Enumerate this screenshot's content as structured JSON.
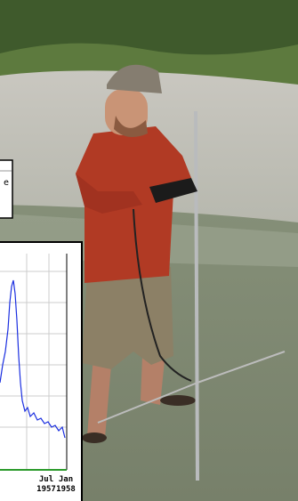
{
  "top_inset": {
    "fragment": "e"
  },
  "inset_chart": {
    "x_labels": [
      {
        "month": "Jul",
        "year": "1957"
      },
      {
        "month": "Jan",
        "year": "1958"
      }
    ]
  }
}
